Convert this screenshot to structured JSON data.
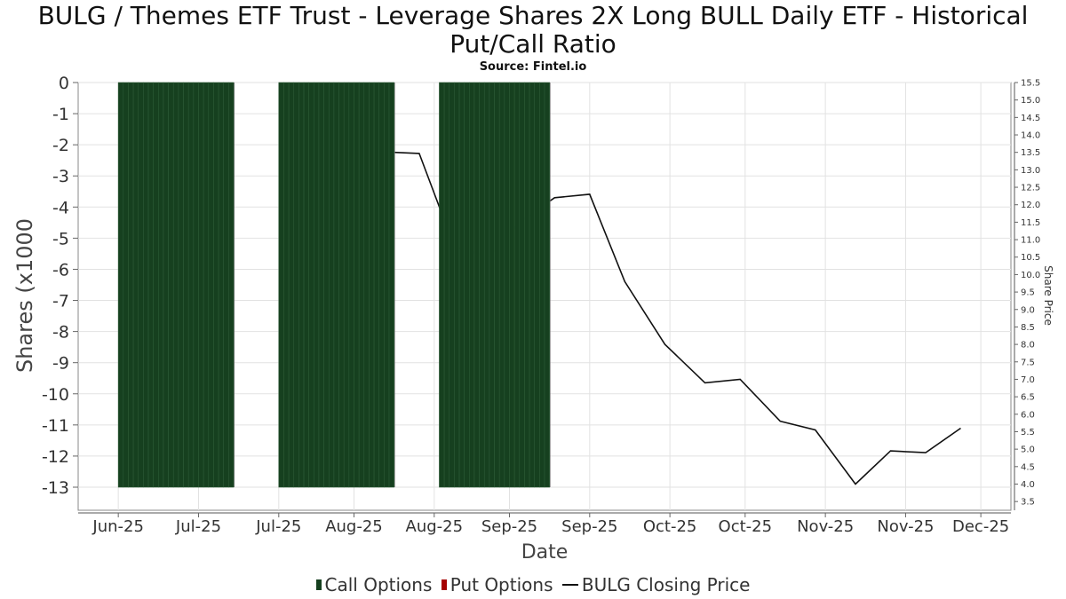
{
  "title": "BULG / Themes ETF Trust - Leverage Shares 2X Long BULL Daily ETF - Historical Put/Call Ratio",
  "source": "Source: Fintel.io",
  "legend": {
    "call_label": "Call Options",
    "put_label": "Put Options",
    "price_label": "BULG Closing Price"
  },
  "colors": {
    "call": "#16401f",
    "put": "#a50000",
    "price": "#111111"
  },
  "chart_data": {
    "type": "bar+line",
    "title": "BULG / Themes ETF Trust - Leverage Shares 2X Long BULL Daily ETF - Historical Put/Call Ratio",
    "xlabel": "Date",
    "ylabel": "Shares (x1000",
    "y2label": "Share Price",
    "ylim": [
      -13.5,
      0
    ],
    "y2lim": [
      3.25,
      15.5
    ],
    "x_range_days": [
      -5,
      181
    ],
    "yticks": [
      0,
      -1,
      -2,
      -3,
      -4,
      -5,
      -6,
      -7,
      -8,
      -9,
      -10,
      -11,
      -12,
      -13
    ],
    "y2ticks": [
      "3.5",
      "4.0",
      "4.5",
      "5.0",
      "5.5",
      "6.0",
      "6.5",
      "7.0",
      "7.5",
      "8.0",
      "8.5",
      "9.0",
      "9.5",
      "10.0",
      "10.5",
      "11.0",
      "11.5",
      "12.0",
      "12.5",
      "13.0",
      "13.5",
      "14.0",
      "14.5",
      "15.0",
      "15.5"
    ],
    "xticks": [
      {
        "label": "Jun-25",
        "day": 3
      },
      {
        "label": "Jul-25",
        "day": 19
      },
      {
        "label": "Jul-25",
        "day": 35
      },
      {
        "label": "Aug-25",
        "day": 50
      },
      {
        "label": "Aug-25",
        "day": 66
      },
      {
        "label": "Sep-25",
        "day": 81
      },
      {
        "label": "Sep-25",
        "day": 97
      },
      {
        "label": "Oct-25",
        "day": 113
      },
      {
        "label": "Oct-25",
        "day": 128
      },
      {
        "label": "Nov-25",
        "day": 144
      },
      {
        "label": "Nov-25",
        "day": 160
      },
      {
        "label": "Dec-25",
        "day": 175
      }
    ],
    "series": [
      {
        "name": "Call Options",
        "kind": "bar",
        "blocks": [
          {
            "start_day": 3,
            "end_day": 25,
            "value": -13
          },
          {
            "start_day": 35,
            "end_day": 57,
            "value": -13
          },
          {
            "start_day": 67,
            "end_day": 88,
            "value": -13
          }
        ]
      },
      {
        "name": "Put Options",
        "kind": "bar",
        "blocks": []
      },
      {
        "name": "BULG Closing Price",
        "kind": "line",
        "points": [
          [
            58,
            13.5
          ],
          [
            63,
            13.47
          ],
          [
            70,
            10.8
          ],
          [
            77,
            10.5
          ],
          [
            83,
            11.5
          ],
          [
            90,
            12.2
          ],
          [
            97,
            12.3
          ],
          [
            104,
            9.8
          ],
          [
            112,
            8.0
          ],
          [
            120,
            6.9
          ],
          [
            127,
            7.0
          ],
          [
            135,
            5.8
          ],
          [
            142,
            5.55
          ],
          [
            150,
            4.0
          ],
          [
            157,
            4.95
          ],
          [
            164,
            4.9
          ],
          [
            171,
            5.6
          ]
        ]
      }
    ]
  }
}
